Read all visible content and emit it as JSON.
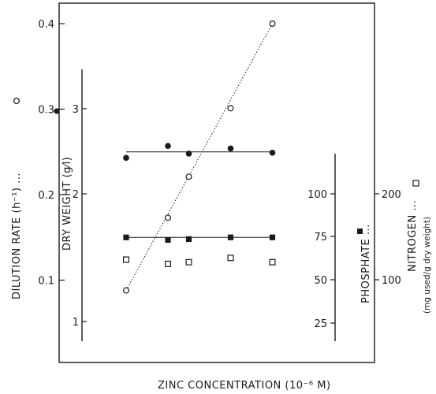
{
  "chart_data": {
    "type": "scatter",
    "xlabel": "ZINC CONCENTRATION (10⁻⁶ M)",
    "axes": {
      "dilution_rate": {
        "label": "DILUTION RATE (h⁻¹) ...",
        "marker_symbol": "○",
        "ticks": [
          "0.1",
          "0.2",
          "0.3",
          "0.4"
        ],
        "range": [
          0.04,
          0.42
        ]
      },
      "dry_weight": {
        "label": "DRY WEIGHT (g⁄l)",
        "marker_symbol": "●",
        "ticks": [
          "1",
          "2",
          "3"
        ]
      },
      "phosphate": {
        "label": "PHOSPHATE ...",
        "marker_symbol": "■",
        "ticks": [
          "25",
          "50",
          "75",
          "100"
        ]
      },
      "nitrogen": {
        "label": "NITROGEN ...",
        "sublabel": "(mg used/g dry weight)",
        "marker_symbol": "□",
        "ticks": [
          "100",
          "200"
        ]
      }
    },
    "series": [
      {
        "marker": "open-circle",
        "axis": "dilution_rate",
        "trend": "dotted-line",
        "points": [
          [
            0.0,
            0.088
          ],
          [
            1.0,
            0.173
          ],
          [
            1.5,
            0.221
          ],
          [
            2.5,
            0.301
          ],
          [
            3.5,
            0.4
          ]
        ]
      },
      {
        "marker": "filled-circle",
        "axis": "dilution_rate",
        "trend": "solid-line",
        "trend_y": 0.25,
        "points": [
          [
            0.0,
            0.243
          ],
          [
            1.0,
            0.257
          ],
          [
            1.5,
            0.248
          ],
          [
            2.5,
            0.254
          ],
          [
            3.5,
            0.249
          ]
        ]
      },
      {
        "marker": "filled-square",
        "axis": "dilution_rate",
        "trend": "solid-line",
        "trend_y": 0.15,
        "points": [
          [
            0.0,
            0.15
          ],
          [
            1.0,
            0.147
          ],
          [
            1.5,
            0.148
          ],
          [
            2.5,
            0.15
          ],
          [
            3.5,
            0.15
          ]
        ]
      },
      {
        "marker": "open-square",
        "axis": "dilution_rate",
        "points": [
          [
            0.0,
            0.124
          ],
          [
            1.0,
            0.119
          ],
          [
            1.5,
            0.121
          ],
          [
            2.5,
            0.126
          ],
          [
            3.5,
            0.121
          ]
        ]
      }
    ]
  }
}
